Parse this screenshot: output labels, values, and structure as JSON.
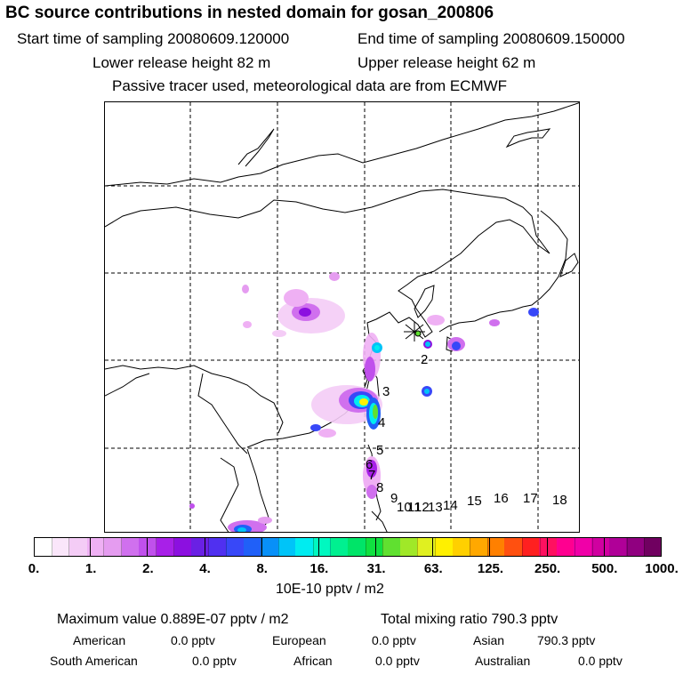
{
  "header": {
    "title": "BC  source contributions in nested domain for gosan_200806",
    "start_label": "Start time of sampling 20080609.120000",
    "end_label": "End time of sampling 20080609.150000",
    "lower_label": "Lower release height   82 m",
    "upper_label": "Upper release height   62 m",
    "tracer_label": "Passive tracer used, meteorological data are from ECMWF"
  },
  "chart_data": {
    "type": "heatmap",
    "title": "BC  source contributions in nested domain for gosan_200806",
    "colorbar": {
      "units": "10E-10 pptv / m2",
      "tick_labels": [
        "0.",
        "1.",
        "2.",
        "4.",
        "8.",
        "16.",
        "31.",
        "63.",
        "125.",
        "250.",
        "500.",
        "1000."
      ],
      "colors": [
        "#ffffff",
        "#fae6fa",
        "#f4ccf6",
        "#efb0f4",
        "#e59cf0",
        "#d070ee",
        "#c050ec",
        "#a820e8",
        "#8c10e0",
        "#6a20e4",
        "#5030f0",
        "#3848f8",
        "#2060f8",
        "#0890f8",
        "#00c4f8",
        "#00ecf0",
        "#00f8c0",
        "#00f090",
        "#00e468",
        "#10e040",
        "#60e030",
        "#a0e828",
        "#e0f020",
        "#fff000",
        "#ffd000",
        "#ffa800",
        "#ff8000",
        "#ff5010",
        "#ff2020",
        "#ff1060",
        "#ff0090",
        "#f000a8",
        "#d000a0",
        "#b00098",
        "#900080",
        "#700060"
      ]
    },
    "trajectory_points": [
      "2",
      "3",
      "4",
      "5",
      "6",
      "7",
      "8",
      "9",
      "10",
      "11",
      "12",
      "13",
      "14",
      "15",
      "16",
      "17",
      "18"
    ],
    "stats": {
      "max_label": "Maximum value  0.889E-07 pptv / m2",
      "total_label": "Total mixing ratio      790.3 pptv",
      "regions": [
        {
          "name": "American",
          "value": "0.0 pptv"
        },
        {
          "name": "European",
          "value": "0.0 pptv"
        },
        {
          "name": "Asian",
          "value": "790.3 pptv"
        },
        {
          "name": "South American",
          "value": "0.0 pptv"
        },
        {
          "name": "African",
          "value": "0.0 pptv"
        },
        {
          "name": "Australian",
          "value": "0.0 pptv"
        }
      ]
    }
  }
}
